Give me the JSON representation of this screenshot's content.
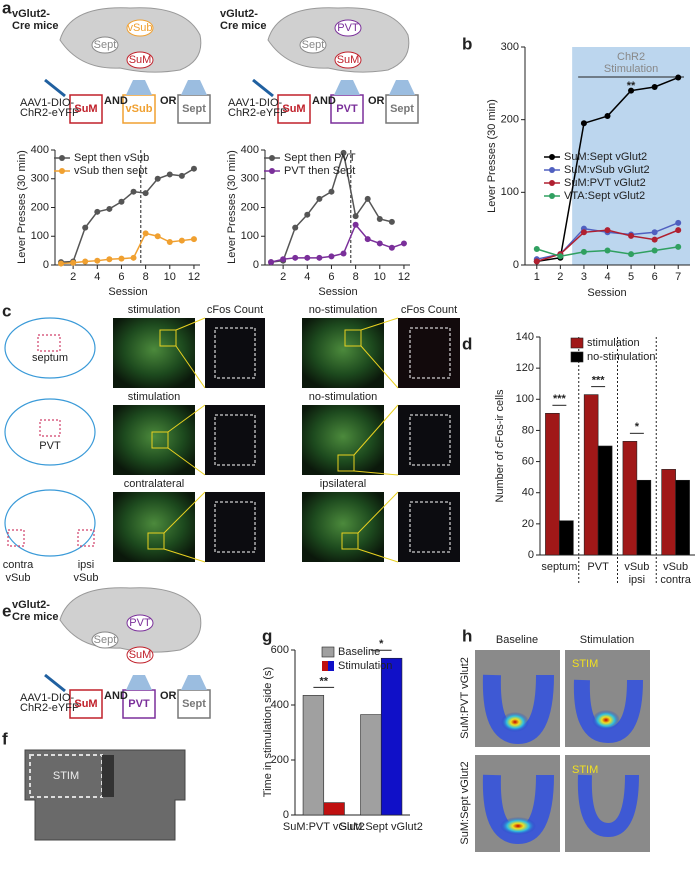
{
  "panel_labels": [
    "a",
    "b",
    "c",
    "d",
    "e",
    "f",
    "g",
    "h"
  ],
  "panel_a": {
    "mouse_line": [
      "vGlut2-",
      "Cre mice"
    ],
    "virus": [
      "AAV1-DIO-",
      "ChR2-eYFP"
    ],
    "and": "AND",
    "or": "OR",
    "left": {
      "regions": [
        "Sept",
        "vSub",
        "SuM"
      ],
      "targets": [
        "SuM",
        "vSub",
        "Sept"
      ]
    },
    "right": {
      "regions": [
        "Sept",
        "PVT",
        "SuM"
      ],
      "targets": [
        "SuM",
        "PVT",
        "Sept"
      ]
    }
  },
  "panel_c": {
    "atlas": [
      "septum",
      "PVT",
      "contra",
      "vSub",
      "ipsi",
      "vSub"
    ],
    "rows": [
      [
        "stimulation",
        "cFos Count",
        "no-stimulation",
        "cFos Count"
      ],
      [
        "stimulation",
        "no-stimulation"
      ],
      [
        "contralateral",
        "ipsilateral"
      ]
    ]
  },
  "panel_e": {
    "regions": [
      "Sept",
      "PVT",
      "SuM"
    ],
    "targets": [
      "SuM",
      "PVT",
      "Sept"
    ]
  },
  "panel_f": {
    "zone": "STIM"
  },
  "panel_h": {
    "columns": [
      "Baseline",
      "Stimulation"
    ],
    "rows": [
      "SuM:PVT vGlut2",
      "SuM:Sept vGlut2"
    ],
    "overlay": "STIM"
  },
  "chart_data": [
    {
      "type": "line",
      "y_label": "Lever Presses (30 min)",
      "x_label": "Session",
      "x": [
        1,
        2,
        3,
        4,
        5,
        6,
        7,
        8,
        9,
        10,
        11,
        12
      ],
      "xlim": [
        0.5,
        12.5
      ],
      "xticks": [
        2,
        4,
        6,
        8,
        10,
        12
      ],
      "ylim": [
        0,
        400
      ],
      "yticks": [
        0,
        100,
        200,
        300,
        400
      ],
      "series": [
        {
          "name": "Sept then vSub",
          "color": "#555555",
          "values": [
            10,
            12,
            130,
            185,
            195,
            220,
            255,
            250,
            300,
            315,
            310,
            335
          ]
        },
        {
          "name": "vSub then sept",
          "color": "#f0a030",
          "values": [
            5,
            8,
            12,
            15,
            20,
            22,
            25,
            110,
            100,
            80,
            85,
            90
          ]
        }
      ]
    },
    {
      "type": "line",
      "y_label": "Lever Presses (30 min)",
      "x_label": "Session",
      "x": [
        1,
        2,
        3,
        4,
        5,
        6,
        7,
        8,
        9,
        10,
        11,
        12
      ],
      "xlim": [
        0.5,
        12.5
      ],
      "xticks": [
        2,
        4,
        6,
        8,
        10,
        12
      ],
      "ylim": [
        0,
        400
      ],
      "yticks": [
        0,
        100,
        200,
        300,
        400
      ],
      "series": [
        {
          "name": "Sept then PVT",
          "color": "#555555",
          "values": [
            10,
            15,
            130,
            175,
            230,
            255,
            390,
            170,
            230,
            160,
            150,
            null
          ]
        },
        {
          "name": "PVT then Sept",
          "color": "#7a2f9a",
          "values": [
            10,
            20,
            25,
            25,
            25,
            30,
            40,
            140,
            90,
            75,
            60,
            75
          ]
        }
      ]
    },
    {
      "type": "line",
      "y_label": "Lever Presses (30 min)",
      "x_label": "Session",
      "annotations": [
        "ChR2",
        "Stimulation",
        "**"
      ],
      "x": [
        1,
        2,
        3,
        4,
        5,
        6,
        7
      ],
      "xlim": [
        0.5,
        7.5
      ],
      "xticks": [
        1,
        2,
        3,
        4,
        5,
        6,
        7
      ],
      "ylim": [
        0,
        300
      ],
      "yticks": [
        0,
        100,
        200,
        300
      ],
      "series": [
        {
          "name": "SuM:Sept vGlut2",
          "color": "#000000",
          "values": [
            5,
            10,
            195,
            205,
            240,
            245,
            258
          ]
        },
        {
          "name": "SuM:vSub vGlut2",
          "color": "#5060c0",
          "values": [
            8,
            15,
            50,
            45,
            42,
            45,
            58
          ]
        },
        {
          "name": "SuM:PVT vGlut2",
          "color": "#b02030",
          "values": [
            5,
            15,
            45,
            48,
            40,
            35,
            48
          ]
        },
        {
          "name": "VTA:Sept vGlut2",
          "color": "#30a060",
          "values": [
            22,
            12,
            18,
            20,
            15,
            20,
            25
          ]
        }
      ]
    },
    {
      "type": "bar",
      "y_label": "Number of cFos-ir cells",
      "categories": [
        "septum",
        "PVT",
        "vSub ipsi",
        "vSub contra"
      ],
      "annotations": [
        "***",
        "***",
        "*",
        null
      ],
      "ylim": [
        0,
        140
      ],
      "yticks": [
        0,
        20,
        40,
        60,
        80,
        100,
        120,
        140
      ],
      "series": [
        {
          "name": "stimulation",
          "color": "#a01818",
          "values": [
            91,
            103,
            73,
            55
          ]
        },
        {
          "name": "no-stimulation",
          "color": "#000000",
          "values": [
            22,
            70,
            48,
            48
          ]
        }
      ]
    },
    {
      "type": "bar",
      "y_label": "Time in stimulation side (s)",
      "categories": [
        "SuM:PVT vGlut2",
        "SuM:Sept vGlut2"
      ],
      "annotations": [
        "**",
        "*"
      ],
      "ylim": [
        0,
        600
      ],
      "yticks": [
        0,
        200,
        400,
        600
      ],
      "series": [
        {
          "name": "Baseline",
          "color": "#a0a0a0",
          "values": [
            435,
            365
          ]
        },
        {
          "name": "Stimulation",
          "colors": [
            "#c01010",
            "#1010c8"
          ],
          "values": [
            45,
            570
          ]
        }
      ]
    }
  ]
}
